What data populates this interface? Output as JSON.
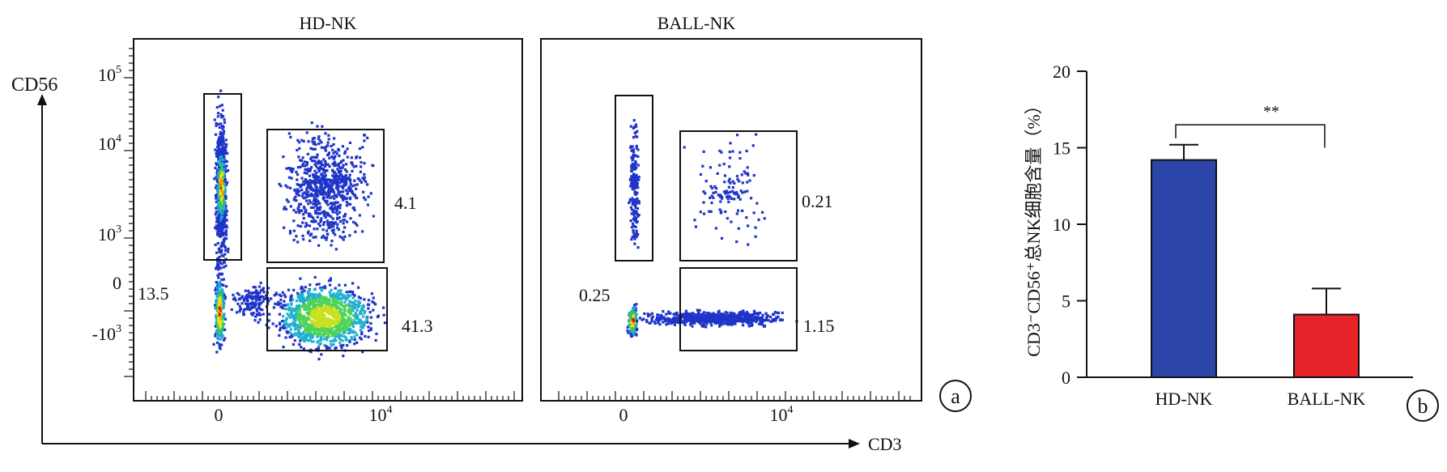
{
  "panel_a": {
    "y_axis_label": "CD56",
    "x_axis_label": "CD3",
    "panel_marker": "a",
    "y_ticks": [
      {
        "base": "10",
        "exp": "5"
      },
      {
        "base": "10",
        "exp": "4"
      },
      {
        "base": "10",
        "exp": "3"
      },
      {
        "base": "0",
        "exp": ""
      },
      {
        "base": "-10",
        "exp": "3"
      }
    ],
    "x_ticks": [
      {
        "base": "0",
        "exp": ""
      },
      {
        "base": "10",
        "exp": "4"
      }
    ],
    "plots": [
      {
        "title": "HD-NK",
        "gates": [
          {
            "id": "cd3neg-cd56pos",
            "value": ""
          },
          {
            "id": "cd3pos-cd56pos",
            "value": "4.1"
          },
          {
            "id": "cd3neg-cd56low",
            "value": "13.5"
          },
          {
            "id": "cd3pos-cd56neg",
            "value": "41.3"
          }
        ]
      },
      {
        "title": "BALL-NK",
        "gates": [
          {
            "id": "cd3neg-cd56pos",
            "value": ""
          },
          {
            "id": "cd3pos-cd56pos",
            "value": "0.21"
          },
          {
            "id": "cd3neg-cd56low",
            "value": "0.25"
          },
          {
            "id": "cd3pos-cd56neg",
            "value": "1.15"
          }
        ]
      }
    ]
  },
  "chart_data": {
    "type": "bar",
    "categories": [
      "HD-NK",
      "BALL-NK"
    ],
    "values": [
      14.2,
      4.1
    ],
    "errors": [
      1.0,
      1.7
    ],
    "colors": [
      "#2c45a8",
      "#e8242b"
    ],
    "title": "",
    "xlabel": "",
    "ylabel": "CD3⁻CD56⁺总NK细胞含量（%）",
    "ylim": [
      0,
      20
    ],
    "yticks": [
      0,
      5,
      10,
      15,
      20
    ],
    "significance": "**",
    "panel_marker": "b"
  }
}
